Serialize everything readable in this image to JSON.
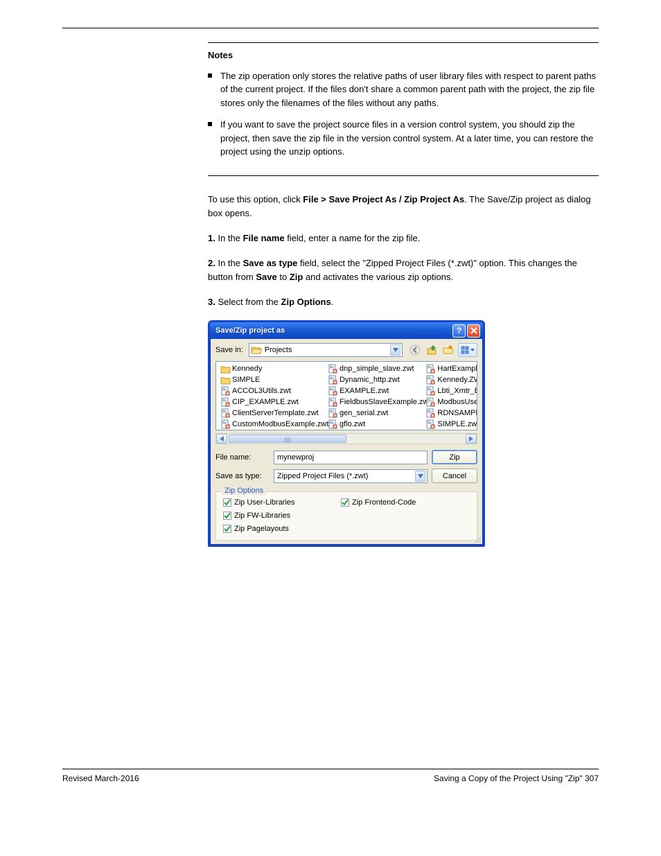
{
  "notes": {
    "heading": "Notes",
    "items": [
      "The zip operation only stores the relative paths of user library files with respect to parent paths of the current project. If the files don't share a common parent path with the project, the zip file stores only the filenames of the files without any paths.",
      "If you want to save the project source files in a version control system, you should zip the project, then save the zip file in the version control system. At a later time, you can restore the project using the unzip options."
    ]
  },
  "body": {
    "para1_prefix": "To use this option, click ",
    "para1_menu": "File > Save Project As / Zip Project As",
    "para1_suffix": ". The Save/Zip project as dialog box opens.",
    "step1_num": "1.",
    "step1_text_a": "In the ",
    "step1_bold": "File name",
    "step1_text_b": " field, enter a name for the zip file.",
    "step2_num": "2.",
    "step2_text_a": "In the ",
    "step2_bold": "Save as type",
    "step2_text_b": " field, select the \"Zipped Project Files (*.zwt)\" option. This changes the button from ",
    "step2_save": "Save",
    "step2_mid": " to ",
    "step2_zip": "Zip",
    "step2_suffix": " and activates the various zip options.",
    "step3_num": "3.",
    "step3_text_a": "Select from the ",
    "step3_bold": "Zip Options",
    "step3_text_b": "."
  },
  "dialog": {
    "title": "Save/Zip project as",
    "savein_label": "Save in:",
    "savein_value": "Projects",
    "columns": [
      [
        {
          "icon": "folder",
          "name": "Kennedy"
        },
        {
          "icon": "folder",
          "name": "SIMPLE"
        },
        {
          "icon": "zwt",
          "name": "ACCOL3Utils.zwt"
        },
        {
          "icon": "zwt",
          "name": "CIP_EXAMPLE.zwt"
        },
        {
          "icon": "zwt",
          "name": "ClientServerTemplate.zwt"
        },
        {
          "icon": "zwt",
          "name": "CustomModbusExample.zwt"
        }
      ],
      [
        {
          "icon": "zwt",
          "name": "dnp_simple_slave.zwt"
        },
        {
          "icon": "zwt",
          "name": "Dynamic_http.zwt"
        },
        {
          "icon": "zwt",
          "name": "EXAMPLE.zwt"
        },
        {
          "icon": "zwt",
          "name": "FieldbusSlaveExample.zwt"
        },
        {
          "icon": "zwt",
          "name": "gen_serial.zwt"
        },
        {
          "icon": "zwt",
          "name": "gflo.zwt"
        }
      ],
      [
        {
          "icon": "zwt",
          "name": "HartExample"
        },
        {
          "icon": "zwt",
          "name": "Kennedy.ZW"
        },
        {
          "icon": "zwt",
          "name": "Lbti_Xmtr_Ex"
        },
        {
          "icon": "zwt",
          "name": "ModbusUserF"
        },
        {
          "icon": "zwt",
          "name": "RDNSAMPLE."
        },
        {
          "icon": "zwt",
          "name": "SIMPLE.zwt"
        }
      ]
    ],
    "filename_label": "File name:",
    "filename_value": "mynewproj",
    "saveas_label": "Save as type:",
    "saveas_value": "Zipped Project Files (*.zwt)",
    "zip_button": "Zip",
    "cancel_button": "Cancel",
    "zip_options_title": "Zip Options",
    "checks": {
      "user_libs": "Zip User-Libraries",
      "fw_libs": "Zip FW-Libraries",
      "pagelayouts": "Zip Pagelayouts",
      "frontend": "Zip Frontend-Code"
    }
  },
  "footer": {
    "left": "Revised March-2016",
    "right": "Saving a Copy of the Project Using \"Zip\"   307"
  }
}
